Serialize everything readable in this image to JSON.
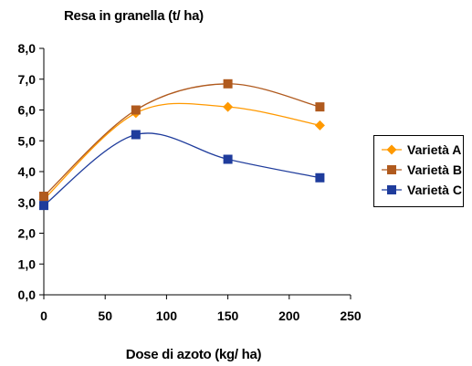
{
  "chart_data": {
    "type": "line",
    "title": "Resa in granella (t/ ha)",
    "xlabel": "Dose di azoto (kg/ ha)",
    "ylabel": "",
    "xlim": [
      0,
      250
    ],
    "ylim": [
      0,
      8
    ],
    "x_ticks": [
      "0",
      "50",
      "100",
      "150",
      "200",
      "250"
    ],
    "y_ticks": [
      "0,0",
      "1,0",
      "2,0",
      "3,0",
      "4,0",
      "5,0",
      "6,0",
      "7,0",
      "8,0"
    ],
    "x": [
      0,
      75,
      150,
      225
    ],
    "series": [
      {
        "name": "Varietà A",
        "values": [
          3.1,
          5.9,
          6.1,
          5.5
        ],
        "color": "#FF9900",
        "marker": "diamond"
      },
      {
        "name": "Varietà B",
        "values": [
          3.2,
          6.0,
          6.85,
          6.1
        ],
        "color": "#B05A1E",
        "marker": "square"
      },
      {
        "name": "Varietà C",
        "values": [
          2.9,
          5.2,
          4.4,
          3.8
        ],
        "color": "#1F3C9C",
        "marker": "square"
      }
    ],
    "smooth": true,
    "grid": false,
    "legend_position": "right"
  }
}
